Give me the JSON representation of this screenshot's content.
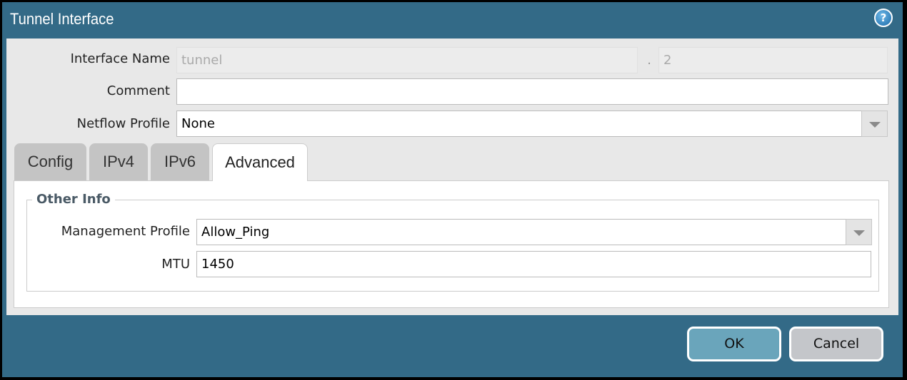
{
  "title": "Tunnel Interface",
  "help_icon": "help-icon",
  "fields": {
    "interface_name_label": "Interface Name",
    "interface_name_value": "tunnel",
    "separator": ".",
    "interface_suffix": "2",
    "comment_label": "Comment",
    "comment_value": "",
    "netflow_label": "Netflow Profile",
    "netflow_value": "None"
  },
  "tabs": [
    {
      "label": "Config"
    },
    {
      "label": "IPv4"
    },
    {
      "label": "IPv6"
    },
    {
      "label": "Advanced",
      "active": true
    }
  ],
  "advanced": {
    "group_title": "Other Info",
    "mgmt_label": "Management Profile",
    "mgmt_value": "Allow_Ping",
    "mtu_label": "MTU",
    "mtu_value": "1450"
  },
  "buttons": {
    "ok": "OK",
    "cancel": "Cancel"
  },
  "colors": {
    "titlebar": "#336a87",
    "ok": "#6aa5bb",
    "cancel": "#c4c6ca"
  }
}
